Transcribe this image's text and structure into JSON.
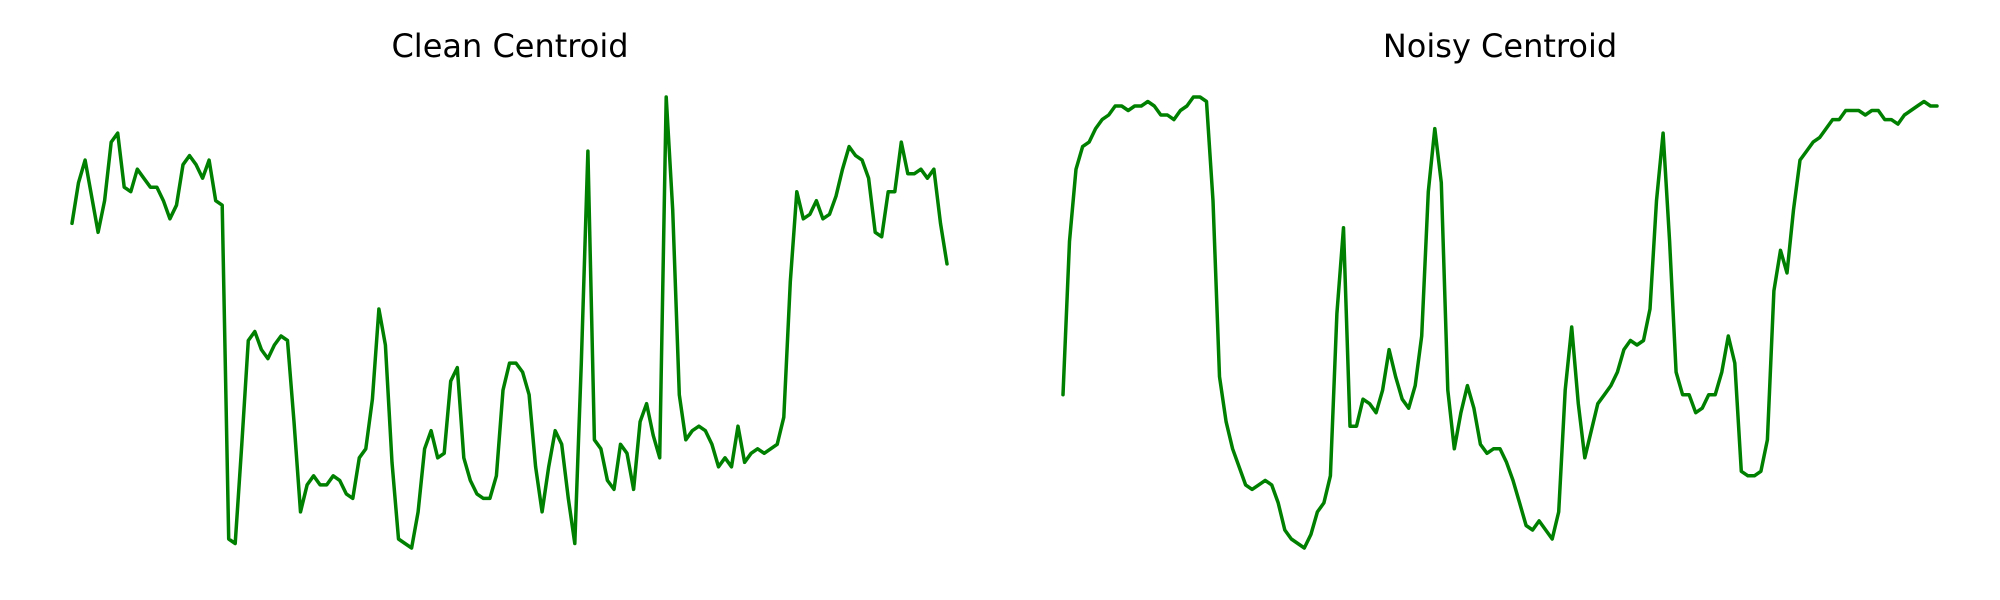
{
  "chart_data": [
    {
      "type": "line",
      "title": "Clean Centroid",
      "xlabel": "",
      "ylabel": "",
      "axes_visible": false,
      "grid": false,
      "color": "#008000",
      "x_range": [
        0,
        134
      ],
      "ylim": [
        0.0,
        1.0
      ],
      "values": [
        0.72,
        0.81,
        0.86,
        0.78,
        0.7,
        0.77,
        0.9,
        0.92,
        0.8,
        0.79,
        0.84,
        0.82,
        0.8,
        0.8,
        0.77,
        0.73,
        0.76,
        0.85,
        0.87,
        0.85,
        0.82,
        0.86,
        0.77,
        0.76,
        0.02,
        0.01,
        0.23,
        0.46,
        0.48,
        0.44,
        0.42,
        0.45,
        0.47,
        0.46,
        0.28,
        0.08,
        0.14,
        0.16,
        0.14,
        0.14,
        0.16,
        0.15,
        0.12,
        0.11,
        0.2,
        0.22,
        0.33,
        0.53,
        0.45,
        0.19,
        0.02,
        0.01,
        0.0,
        0.08,
        0.22,
        0.26,
        0.2,
        0.21,
        0.37,
        0.4,
        0.2,
        0.15,
        0.12,
        0.11,
        0.11,
        0.16,
        0.35,
        0.41,
        0.41,
        0.39,
        0.34,
        0.18,
        0.08,
        0.18,
        0.26,
        0.23,
        0.11,
        0.01,
        0.41,
        0.88,
        0.24,
        0.22,
        0.15,
        0.13,
        0.23,
        0.21,
        0.13,
        0.28,
        0.32,
        0.25,
        0.2,
        1.0,
        0.75,
        0.34,
        0.24,
        0.26,
        0.27,
        0.26,
        0.23,
        0.18,
        0.2,
        0.18,
        0.27,
        0.19,
        0.21,
        0.22,
        0.21,
        0.22,
        0.23,
        0.29,
        0.59,
        0.79,
        0.73,
        0.74,
        0.77,
        0.73,
        0.74,
        0.78,
        0.84,
        0.89,
        0.87,
        0.86,
        0.82,
        0.7,
        0.69,
        0.79,
        0.79,
        0.9,
        0.83,
        0.83,
        0.84,
        0.82,
        0.84,
        0.72,
        0.63
      ]
    },
    {
      "type": "line",
      "title": "Noisy Centroid",
      "xlabel": "",
      "ylabel": "",
      "axes_visible": false,
      "grid": false,
      "color": "#008000",
      "x_range": [
        0,
        134
      ],
      "ylim": [
        0.0,
        1.0
      ],
      "values": [
        0.34,
        0.68,
        0.84,
        0.89,
        0.9,
        0.93,
        0.95,
        0.96,
        0.98,
        0.98,
        0.97,
        0.98,
        0.98,
        0.99,
        0.98,
        0.96,
        0.96,
        0.95,
        0.97,
        0.98,
        1.0,
        1.0,
        0.99,
        0.77,
        0.38,
        0.28,
        0.22,
        0.18,
        0.14,
        0.13,
        0.14,
        0.15,
        0.14,
        0.1,
        0.04,
        0.02,
        0.01,
        0.0,
        0.03,
        0.08,
        0.1,
        0.16,
        0.52,
        0.71,
        0.27,
        0.27,
        0.33,
        0.32,
        0.3,
        0.35,
        0.44,
        0.38,
        0.33,
        0.31,
        0.36,
        0.47,
        0.79,
        0.93,
        0.81,
        0.35,
        0.22,
        0.3,
        0.36,
        0.31,
        0.23,
        0.21,
        0.22,
        0.22,
        0.19,
        0.15,
        0.1,
        0.05,
        0.04,
        0.06,
        0.04,
        0.02,
        0.08,
        0.35,
        0.49,
        0.32,
        0.2,
        0.26,
        0.32,
        0.34,
        0.36,
        0.39,
        0.44,
        0.46,
        0.45,
        0.46,
        0.53,
        0.77,
        0.92,
        0.68,
        0.39,
        0.34,
        0.34,
        0.3,
        0.31,
        0.34,
        0.34,
        0.39,
        0.47,
        0.41,
        0.17,
        0.16,
        0.16,
        0.17,
        0.24,
        0.57,
        0.66,
        0.61,
        0.75,
        0.86,
        0.88,
        0.9,
        0.91,
        0.93,
        0.95,
        0.95,
        0.97,
        0.97,
        0.97,
        0.96,
        0.97,
        0.97,
        0.95,
        0.95,
        0.94,
        0.96,
        0.97,
        0.98,
        0.99,
        0.98,
        0.98
      ]
    }
  ]
}
